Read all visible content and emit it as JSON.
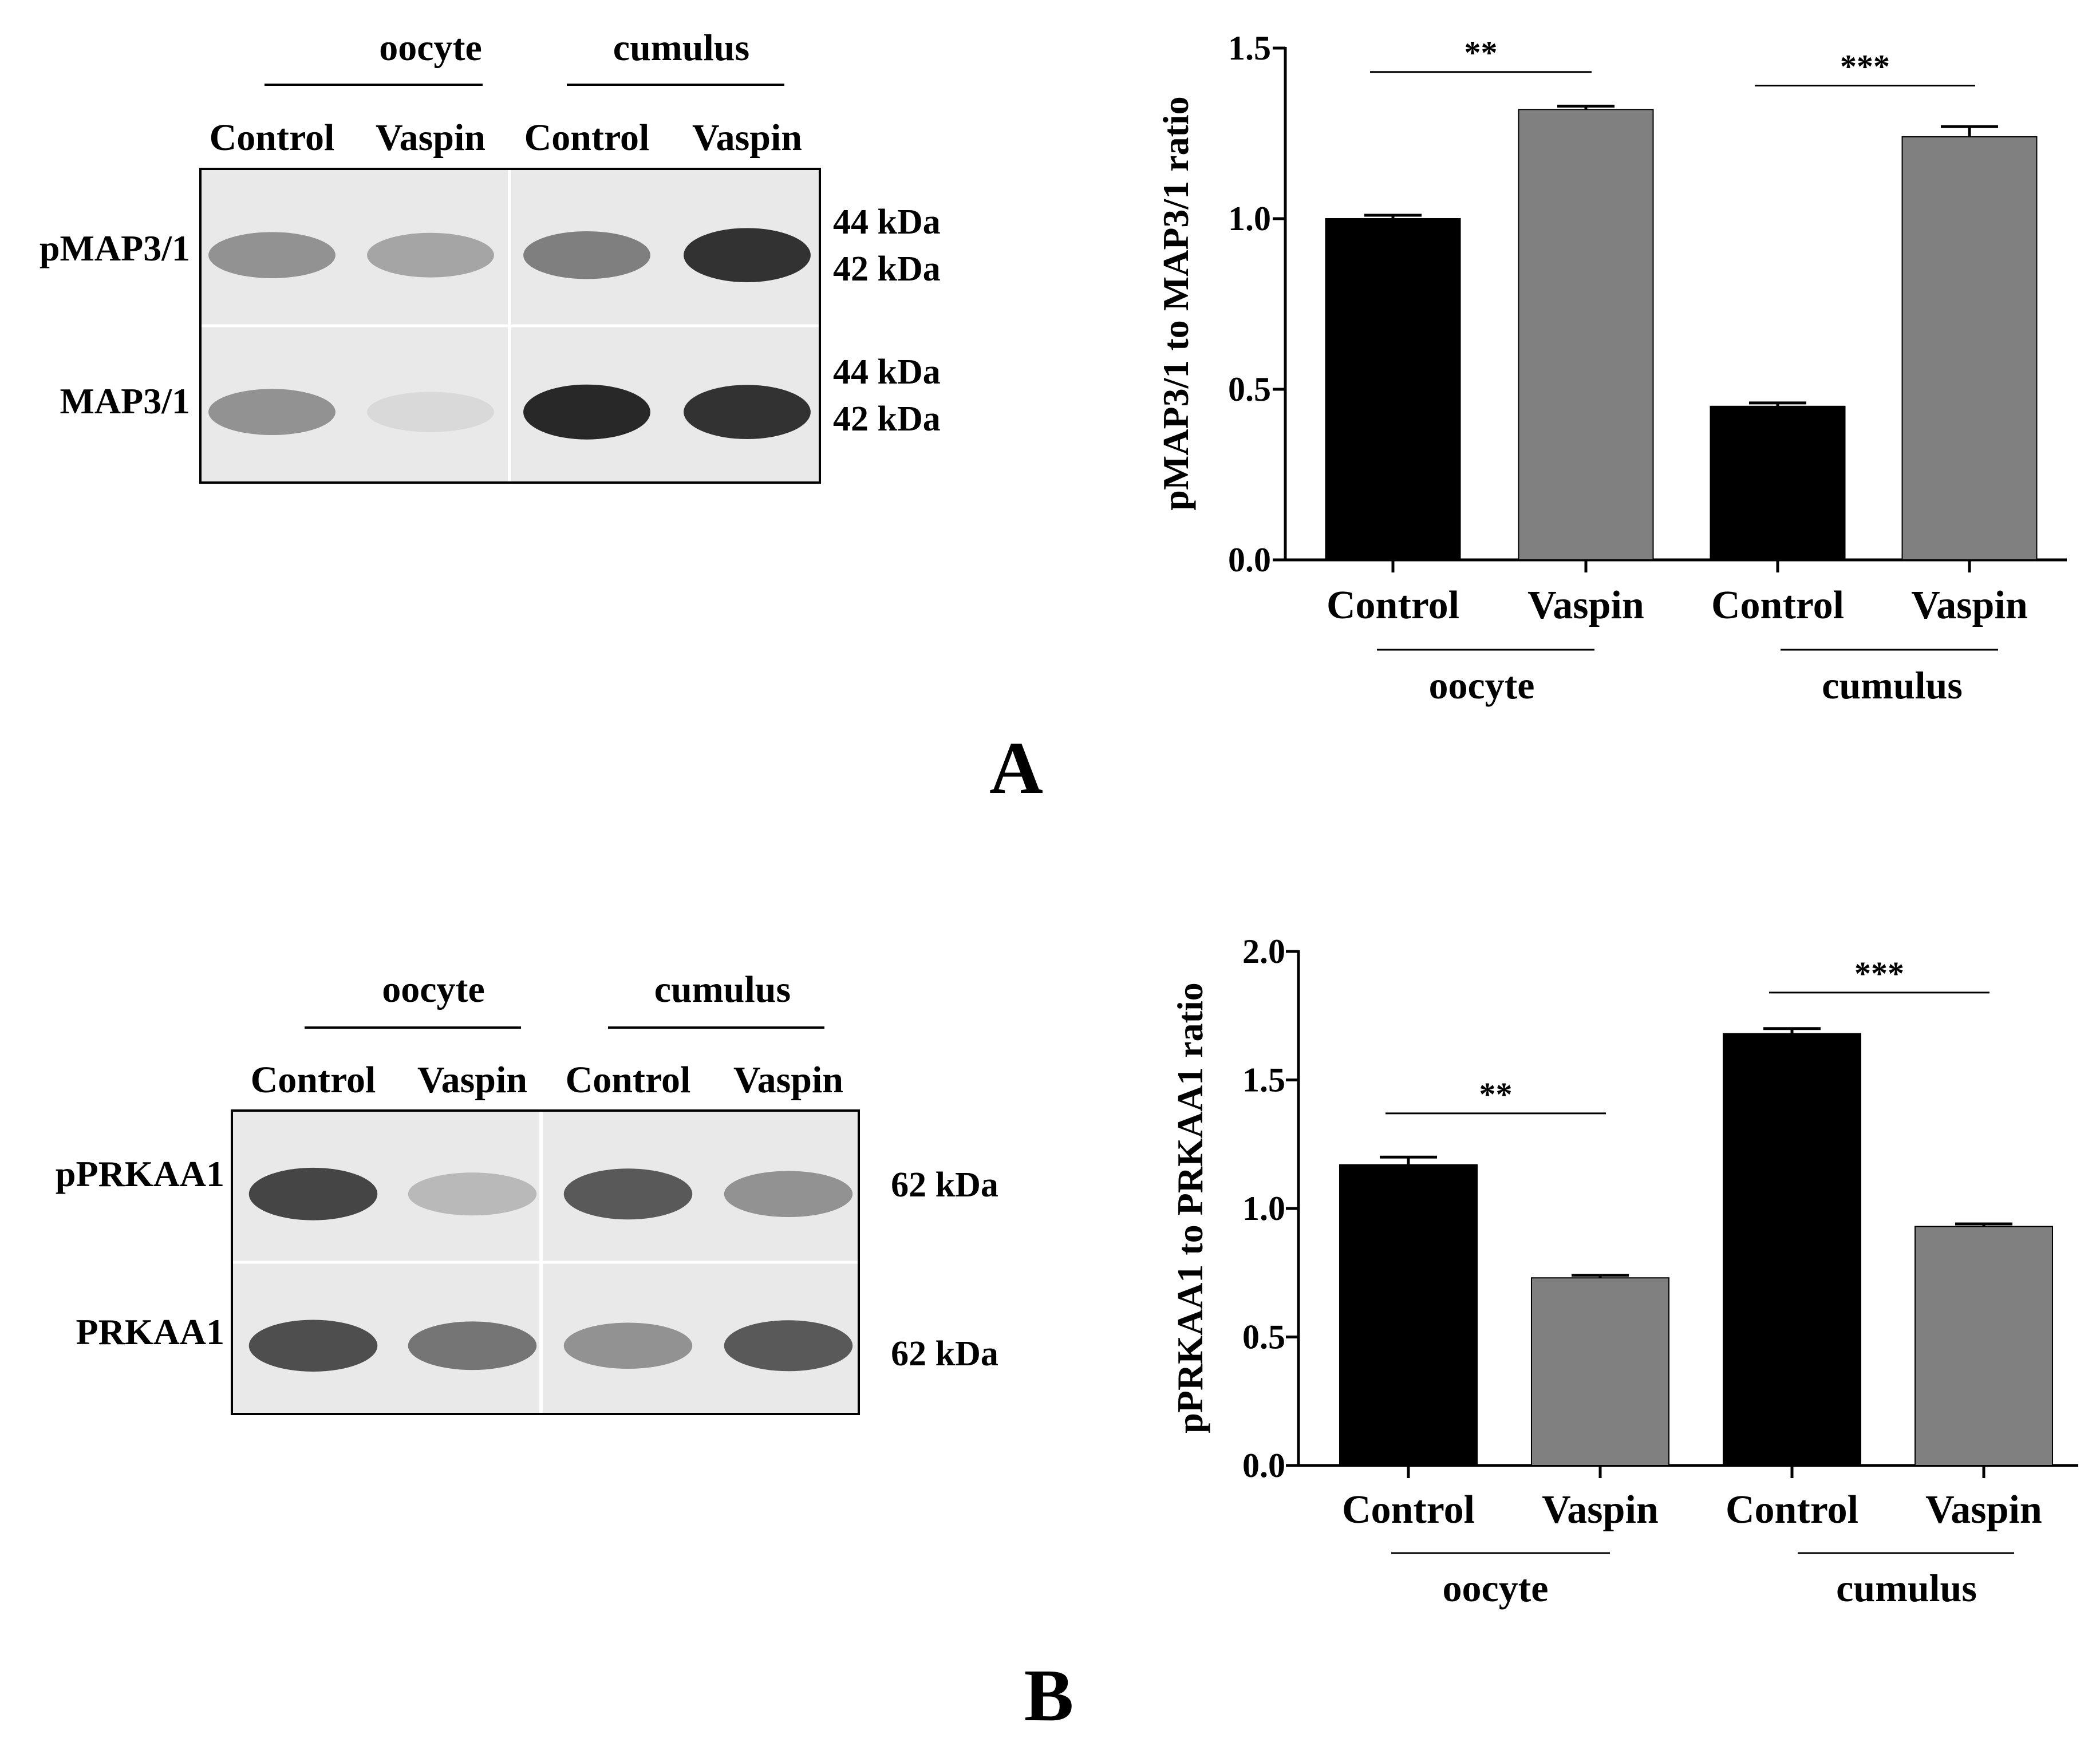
{
  "panels": [
    {
      "panel_label": "A",
      "blot": {
        "group_labels": [
          "oocyte",
          "cumulus"
        ],
        "lane_labels": [
          "Control",
          "Vaspin",
          "Control",
          "Vaspin"
        ],
        "rows": [
          {
            "label": "pMAP3/1",
            "markers": [
              "44 kDa",
              "42 kDa"
            ],
            "band_intensity": [
              0.45,
              0.35,
              0.55,
              0.95
            ]
          },
          {
            "label": "MAP3/1",
            "markers": [
              "44 kDa",
              "42 kDa"
            ],
            "band_intensity": [
              0.45,
              0.08,
              1.0,
              0.95
            ]
          }
        ]
      },
      "chart_data": {
        "type": "bar",
        "categories": [
          "Control",
          "Vaspin",
          "Control",
          "Vaspin"
        ],
        "groups": [
          {
            "name": "oocyte",
            "categories": [
              0,
              1
            ]
          },
          {
            "name": "cumulus",
            "categories": [
              2,
              3
            ]
          }
        ],
        "values": [
          1.0,
          1.32,
          0.45,
          1.24
        ],
        "errors": [
          0.01,
          0.01,
          0.01,
          0.03
        ],
        "bar_colors": [
          "#000000",
          "#808080",
          "#000000",
          "#808080"
        ],
        "ylabel": "pMAP3/1 to MAP3/1 ratio",
        "ylim": [
          0,
          1.5
        ],
        "yticks": [
          "0.0",
          "0.5",
          "1.0",
          "1.5"
        ],
        "significance": [
          {
            "from": 0,
            "to": 1,
            "label": "**",
            "y": 1.43
          },
          {
            "from": 2,
            "to": 3,
            "label": "***",
            "y": 1.39
          }
        ],
        "grid": false
      }
    },
    {
      "panel_label": "B",
      "blot": {
        "group_labels": [
          "oocyte",
          "cumulus"
        ],
        "lane_labels": [
          "Control",
          "Vaspin",
          "Control",
          "Vaspin"
        ],
        "rows": [
          {
            "label": "pPRKAA1",
            "markers": [
              "62 kDa"
            ],
            "band_intensity": [
              0.85,
              0.25,
              0.75,
              0.45
            ]
          },
          {
            "label": "PRKAA1",
            "markers": [
              "62 kDa"
            ],
            "band_intensity": [
              0.8,
              0.6,
              0.45,
              0.75
            ]
          }
        ]
      },
      "chart_data": {
        "type": "bar",
        "categories": [
          "Control",
          "Vaspin",
          "Control",
          "Vaspin"
        ],
        "groups": [
          {
            "name": "oocyte",
            "categories": [
              0,
              1
            ]
          },
          {
            "name": "cumulus",
            "categories": [
              2,
              3
            ]
          }
        ],
        "values": [
          1.17,
          0.73,
          1.68,
          0.93
        ],
        "errors": [
          0.03,
          0.01,
          0.02,
          0.01
        ],
        "bar_colors": [
          "#000000",
          "#808080",
          "#000000",
          "#808080"
        ],
        "ylabel": "pPRKAA1 to PRKAA1 ratio",
        "ylim": [
          0,
          2.0
        ],
        "yticks": [
          "0.0",
          "0.5",
          "1.0",
          "1.5",
          "2.0"
        ],
        "significance": [
          {
            "from": 0,
            "to": 1,
            "label": "**",
            "y": 1.37
          },
          {
            "from": 2,
            "to": 3,
            "label": "***",
            "y": 1.84
          }
        ],
        "grid": false
      }
    }
  ]
}
